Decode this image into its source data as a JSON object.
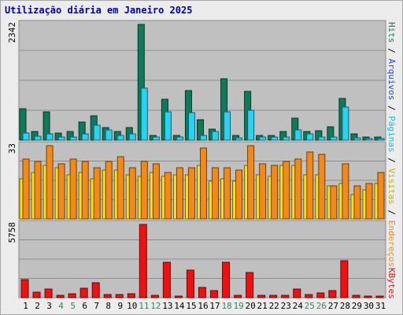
{
  "colors": {
    "hits": "#0f7a5a",
    "arquivos": "#2ad2f2",
    "paginas": "#f9e017",
    "visitas": "#f28a1a",
    "kbytes": "#ee1111",
    "title": "#0000a0",
    "weekend_label": "#2e8b57",
    "panel_bg": "#c0c0c0"
  },
  "chart_data": [
    {
      "type": "bar",
      "title": "Utilização diária em Janeiro 2025",
      "categories": [
        "1",
        "2",
        "3",
        "4",
        "5",
        "6",
        "7",
        "8",
        "9",
        "10",
        "11",
        "12",
        "13",
        "14",
        "15",
        "16",
        "17",
        "18",
        "19",
        "20",
        "21",
        "22",
        "23",
        "24",
        "25",
        "26",
        "27",
        "28",
        "29",
        "30",
        "31"
      ],
      "weekend_days": [
        "4",
        "5",
        "11",
        "12",
        "18",
        "19",
        "25",
        "26"
      ],
      "max_label": "2342",
      "series": [
        {
          "name": "Hits",
          "color": "#0f7a5a",
          "values": [
            630,
            170,
            580,
            150,
            180,
            370,
            500,
            260,
            170,
            260,
            2342,
            95,
            830,
            95,
            1000,
            420,
            230,
            1250,
            95,
            980,
            100,
            100,
            180,
            440,
            180,
            190,
            270,
            850,
            120,
            60,
            60
          ]
        },
        {
          "name": "Arquivos",
          "color": "#2ad2f2",
          "values": [
            140,
            80,
            130,
            60,
            70,
            130,
            310,
            200,
            100,
            130,
            1050,
            60,
            580,
            60,
            560,
            90,
            180,
            570,
            55,
            600,
            60,
            60,
            70,
            210,
            120,
            70,
            70,
            670,
            55,
            30,
            30
          ]
        }
      ],
      "right_label": "Hits / Arquivos"
    },
    {
      "type": "bar",
      "categories": [
        "1",
        "2",
        "3",
        "4",
        "5",
        "6",
        "7",
        "8",
        "9",
        "10",
        "11",
        "12",
        "13",
        "14",
        "15",
        "16",
        "17",
        "18",
        "19",
        "20",
        "21",
        "22",
        "23",
        "24",
        "25",
        "26",
        "27",
        "28",
        "29",
        "30",
        "31"
      ],
      "max_label": "33",
      "series": [
        {
          "name": "Páginas",
          "color": "#f9e017",
          "values": [
            18,
            21,
            24,
            23,
            20,
            21,
            18,
            22,
            22,
            20,
            19,
            21,
            19,
            20,
            20,
            24,
            17,
            18,
            17,
            24,
            20,
            19,
            24,
            24,
            20,
            20,
            15,
            16,
            11,
            13,
            16
          ]
        },
        {
          "name": "Visitas",
          "color": "#f28a1a",
          "values": [
            27,
            26,
            33,
            25,
            27,
            26,
            23,
            26,
            28,
            23,
            26,
            25,
            21,
            23,
            23,
            32,
            23,
            23,
            22,
            33,
            25,
            24,
            26,
            27,
            30,
            29,
            15,
            25,
            15,
            16,
            21
          ]
        }
      ],
      "right_label": "Endereços / Visitas / Páginas"
    },
    {
      "type": "bar",
      "categories": [
        "1",
        "2",
        "3",
        "4",
        "5",
        "6",
        "7",
        "8",
        "9",
        "10",
        "11",
        "12",
        "13",
        "14",
        "15",
        "16",
        "17",
        "18",
        "19",
        "20",
        "21",
        "22",
        "23",
        "24",
        "25",
        "26",
        "27",
        "28",
        "29",
        "30",
        "31"
      ],
      "max_label": "5758",
      "series": [
        {
          "name": "KBytes",
          "color": "#ee1111",
          "values": [
            1400,
            460,
            710,
            200,
            330,
            720,
            1150,
            270,
            240,
            280,
            5758,
            170,
            2760,
            140,
            2190,
            820,
            580,
            2770,
            180,
            1970,
            160,
            170,
            210,
            690,
            220,
            360,
            580,
            2900,
            180,
            110,
            110
          ]
        }
      ],
      "right_label": "KBytes"
    }
  ]
}
